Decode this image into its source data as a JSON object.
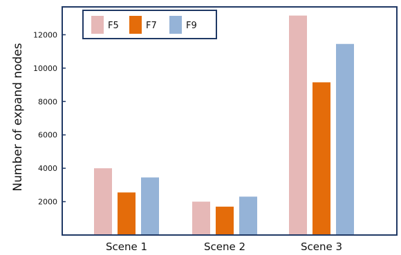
{
  "chart_data": {
    "type": "bar",
    "title": "",
    "xlabel": "",
    "ylabel": "Number  of expand nodes",
    "categories": [
      "Scene 1",
      "Scene 2",
      "Scene 3"
    ],
    "series": [
      {
        "name": "F5",
        "color": "#e6b8b7",
        "values": [
          4000,
          2000,
          13150
        ]
      },
      {
        "name": "F7",
        "color": "#e46c0a",
        "values": [
          2550,
          1700,
          9150
        ]
      },
      {
        "name": "F9",
        "color": "#95b3d7",
        "values": [
          3450,
          2300,
          11450
        ]
      }
    ],
    "ylim": [
      0,
      14000
    ],
    "yticks": [
      2000,
      4000,
      6000,
      8000,
      10000,
      12000
    ],
    "grid": false,
    "legend_position": "top-left",
    "frame_color": "#1f3864"
  }
}
